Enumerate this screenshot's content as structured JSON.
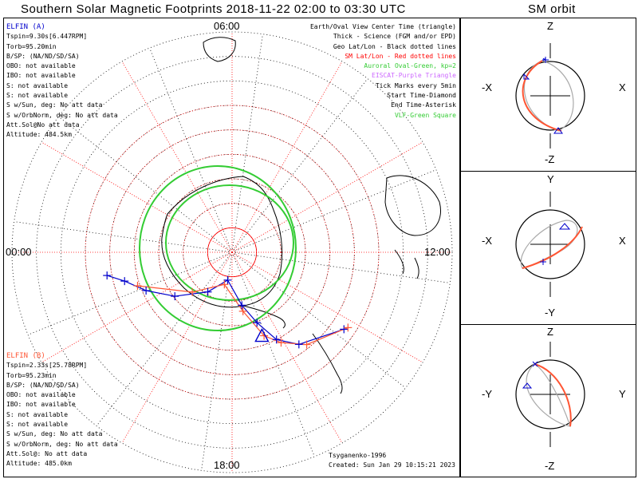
{
  "title": "Southern Solar Magnetic Footprints 2018-11-22 02:00 to 03:30 UTC",
  "orbit_title": "SM orbit",
  "clock_labels": {
    "top": "06:00",
    "left": "00:00",
    "right": "12:00",
    "bottom": "18:00"
  },
  "satellite_a": {
    "name": "ELFIN (A)",
    "color": "#0000cc",
    "lines": [
      "Tspin=9.30s[6.447RPM]",
      "Torb=95.20min",
      "B/SP: (NA/ND/SD/SA)",
      "OBO: not available",
      "IBO: not available",
      "S: not available",
      "S: not available",
      "S w/Sun, deg: No att data",
      "S w/OrbNorm, deg: No att data",
      "Att.Sol@No att data",
      "Altitude: 484.5km"
    ]
  },
  "satellite_b": {
    "name": "ELFIN (B)",
    "color": "#ff5533",
    "lines": [
      "Tspin=2.33s[25.78RPM]",
      "Torb=95.23min",
      "B/SP: (NA/ND/SD/SA)",
      "OBO: not available",
      "IBO: not available",
      "S: not available",
      "S: not available",
      "S w/Sun, deg: No att data",
      "S w/OrbNorm, deg: No att data",
      "Att.Sol@: No att data",
      "Altitude: 485.0km"
    ]
  },
  "legend": [
    {
      "text": "Earth/Oval View Center Time (triangle)",
      "color": "#000000"
    },
    {
      "text": "Thick - Science (FGM and/or EPD)",
      "color": "#000000"
    },
    {
      "text": "Geo Lat/Lon - Black dotted lines",
      "color": "#000000"
    },
    {
      "text": "SM Lat/Lon - Red dotted lines",
      "color": "#ff0000"
    },
    {
      "text": "Auroral Oval-Green, kp=2",
      "color": "#33cc33"
    },
    {
      "text": "EISCAT-Purple Triangle",
      "color": "#cc66ff"
    },
    {
      "text": "Tick Marks every 5min",
      "color": "#000000"
    },
    {
      "text": "Start Time-Diamond",
      "color": "#000000"
    },
    {
      "text": "End Time-Asterisk",
      "color": "#000000"
    },
    {
      "text": "VLF-Green Square",
      "color": "#33cc33"
    }
  ],
  "credit": {
    "author": "Tsyganenko-1996",
    "created": "Created: Sun Jan 29 10:15:21 2023"
  },
  "orbit_panels": [
    {
      "top": "Z",
      "bottom": "-Z",
      "left": "-X",
      "right": "X"
    },
    {
      "top": "Y",
      "bottom": "-Y",
      "left": "-X",
      "right": "X"
    },
    {
      "top": "Z",
      "bottom": "-Z",
      "left": "-Y",
      "right": "Y"
    }
  ],
  "chart_data": {
    "type": "scatter",
    "projection": "polar, southern hemisphere, magnetic local time",
    "title": "Southern Solar Magnetic Footprints 2018-11-22 02:00 to 03:30 UTC",
    "latitude_rings_deg": [
      -80,
      -70,
      -60,
      -50,
      -40,
      -30
    ],
    "mlt_labels": [
      "00:00",
      "06:00",
      "12:00",
      "18:00"
    ],
    "auroral_oval": {
      "kp": 2,
      "color": "#33cc33"
    },
    "series": [
      {
        "name": "ELFIN (A)",
        "color": "#0000cc",
        "marker": "+",
        "tick_interval_min": 5,
        "mlt_hours": [
          23.3,
          23.0,
          22.4,
          21.5,
          20.1,
          18.6,
          17.3,
          16.7,
          16.2,
          15.6,
          14.3
        ],
        "abs_mlat_deg": [
          38.0,
          44.5,
          51.5,
          60.5,
          71.0,
          78.5,
          68.0,
          59.5,
          50.0,
          43.5,
          34.5
        ]
      },
      {
        "name": "ELFIN (B)",
        "color": "#ff5533",
        "marker": "+",
        "tick_interval_min": 5,
        "mlt_hours": [
          22.7,
          21.0,
          18.9,
          17.3,
          16.6,
          16.1,
          15.4,
          14.2
        ],
        "abs_mlat_deg": [
          49.0,
          67.0,
          76.5,
          65.5,
          53.5,
          48.0,
          41.5,
          33.5
        ]
      }
    ],
    "view_center_mlt_hours": 16.7,
    "view_center_abs_mlat_deg": 53.5
  }
}
